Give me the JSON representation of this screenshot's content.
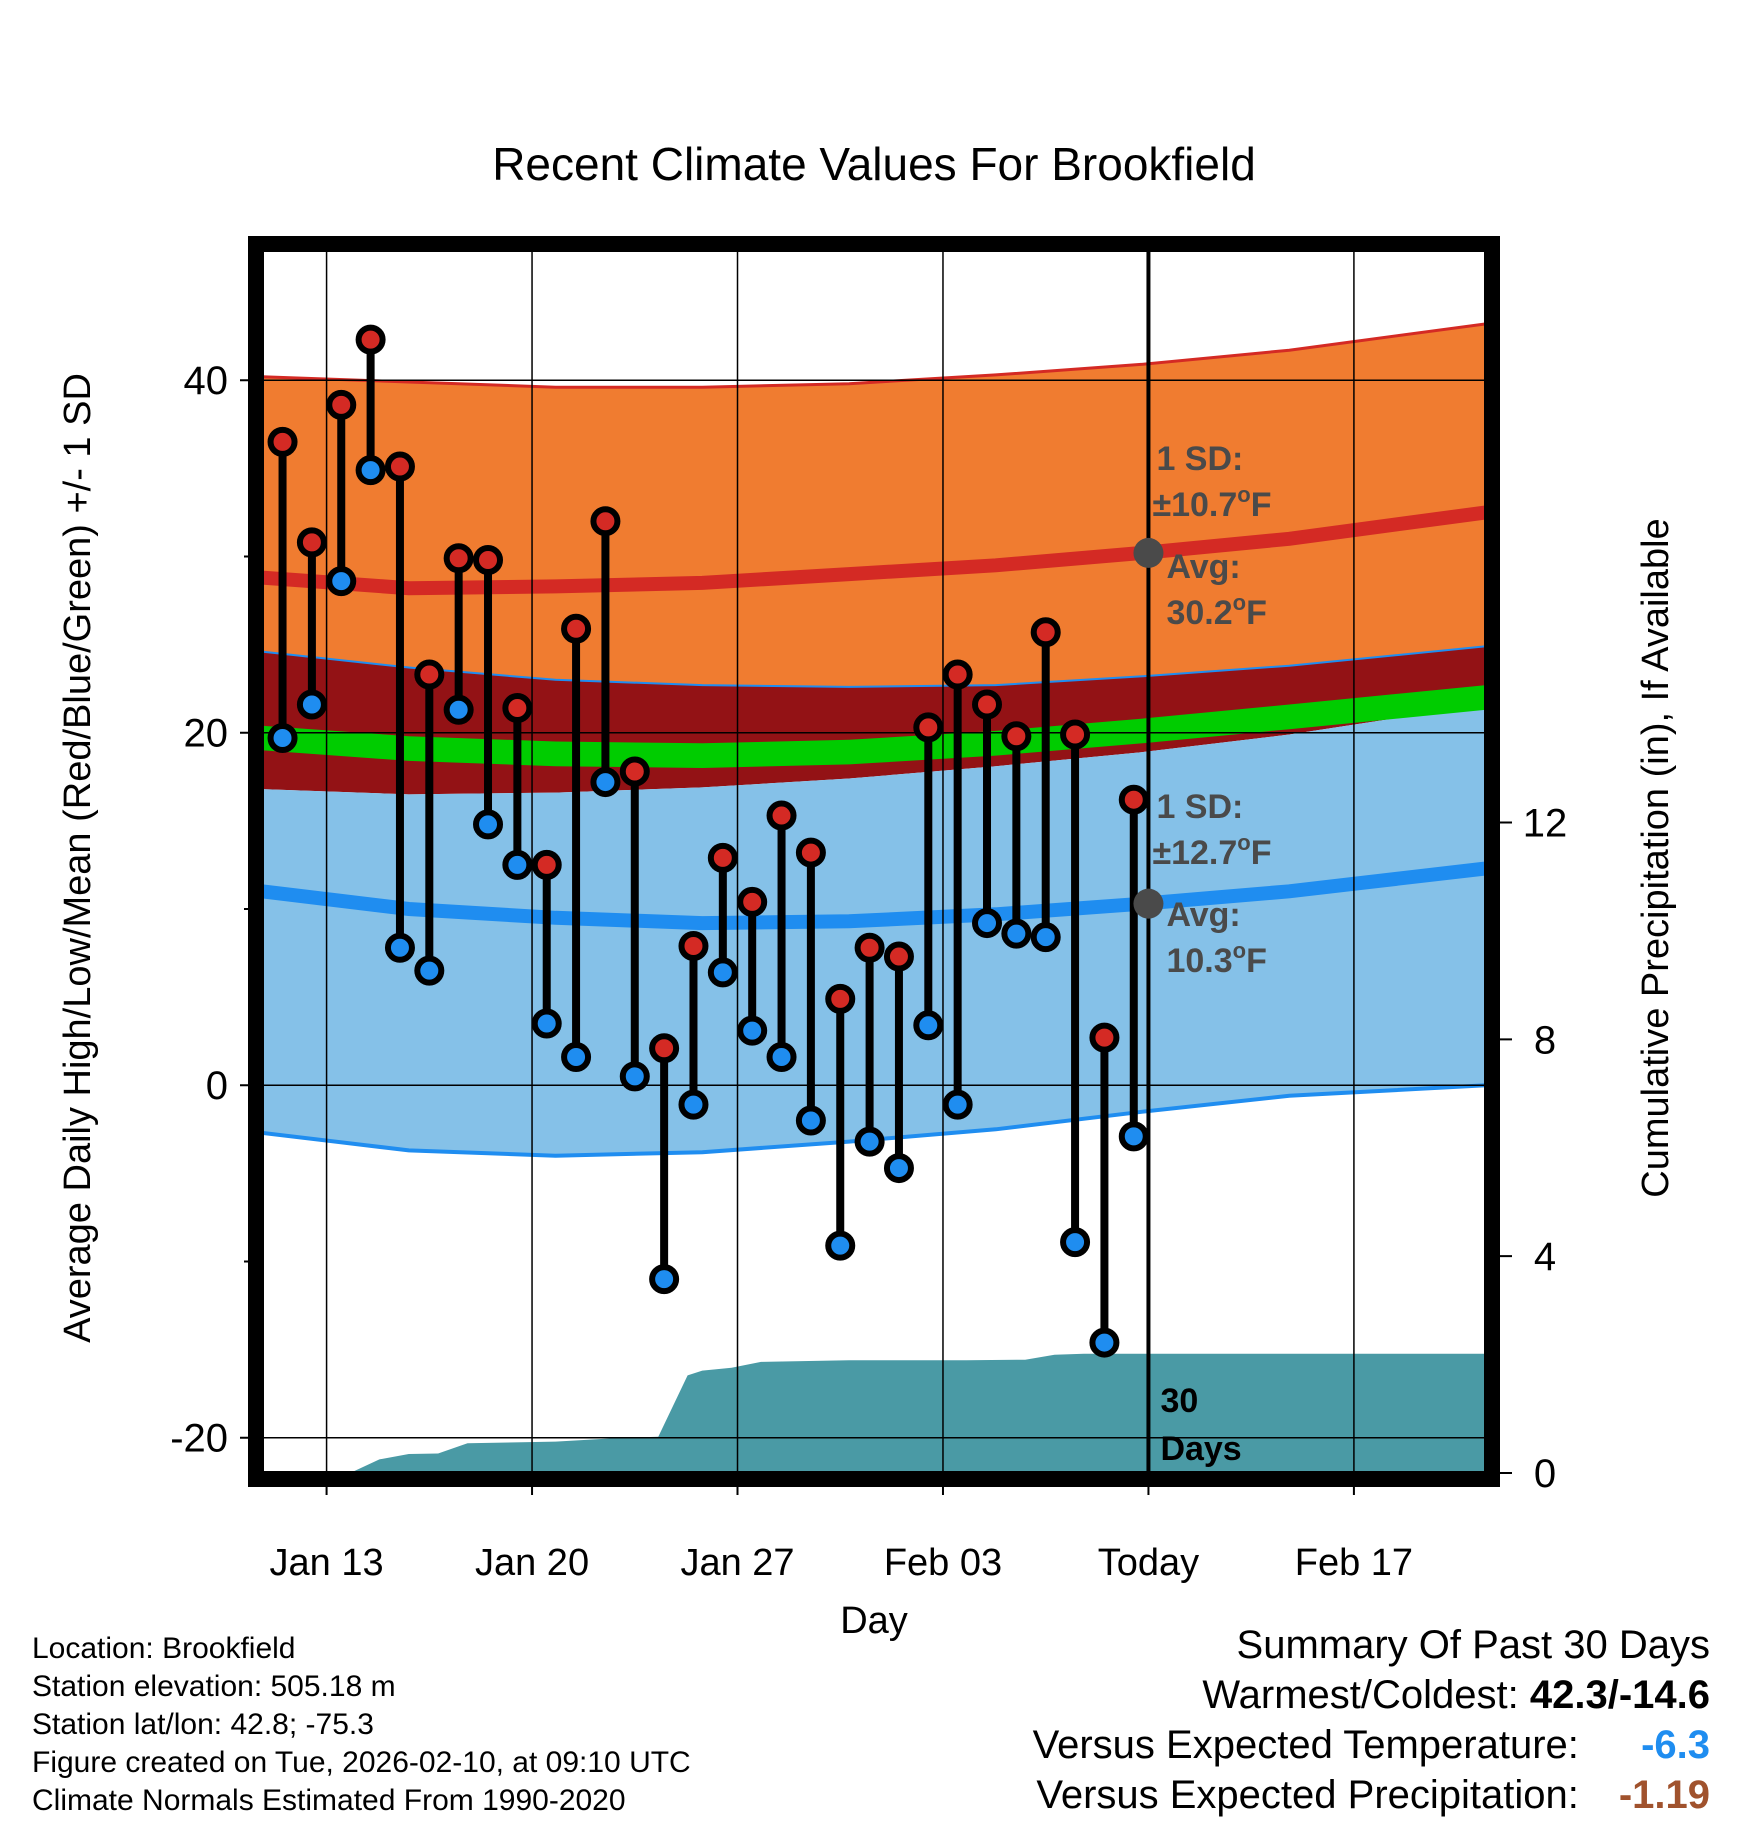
{
  "chart_data": {
    "type": "line",
    "title": "Recent Climate Values For Brookfield",
    "xlabel": "Day",
    "ylabel": "Average Daily High/Low/Mean (Red/Blue/Green) +/- 1 SD",
    "y2label": "Cumulative Precipitation (in), If Available",
    "xlim": [
      0,
      41.7
    ],
    "ylim": [
      -22,
      47.5
    ],
    "y2lim": [
      0,
      22.6
    ],
    "x_ticks": [
      {
        "x": 2.2,
        "label": "Jan 13"
      },
      {
        "x": 9.2,
        "label": "Jan 20"
      },
      {
        "x": 16.2,
        "label": "Jan 27"
      },
      {
        "x": 23.2,
        "label": "Feb 03"
      },
      {
        "x": 30.2,
        "label": "Today"
      },
      {
        "x": 37.2,
        "label": "Feb 17"
      }
    ],
    "y_ticks": [
      -20,
      0,
      20,
      40
    ],
    "y_ticks_labels": [
      "-20",
      "0",
      "20",
      "40"
    ],
    "y_minor_ticks": [
      -10,
      10,
      30
    ],
    "y2_ticks": [
      0,
      4,
      8,
      12
    ],
    "y2_ticks_labels": [
      "0",
      "4",
      "8",
      "12"
    ],
    "today_x": 30.2,
    "normals": {
      "x": [
        0,
        5,
        10,
        15,
        20,
        25,
        30,
        35,
        41.7
      ],
      "high_avg": [
        28.8,
        28.2,
        28.3,
        28.5,
        29.0,
        29.5,
        30.2,
        31.0,
        32.5
      ],
      "high_upper": [
        40.2,
        39.9,
        39.6,
        39.6,
        39.8,
        40.3,
        40.9,
        41.7,
        43.2
      ],
      "high_lower": [
        24.6,
        23.7,
        23.0,
        22.7,
        22.6,
        22.7,
        23.2,
        23.8,
        24.9
      ],
      "mean_upper": [
        20.4,
        19.8,
        19.5,
        19.4,
        19.6,
        20.1,
        20.8,
        21.6,
        22.7
      ],
      "mean_lower": [
        19.0,
        18.4,
        18.1,
        18.0,
        18.2,
        18.7,
        19.4,
        20.2,
        21.3
      ],
      "low_upper": [
        16.8,
        16.5,
        16.6,
        16.9,
        17.4,
        18.1,
        18.9,
        19.9,
        21.6
      ],
      "low_avg": [
        11.0,
        10.0,
        9.5,
        9.2,
        9.3,
        9.7,
        10.3,
        11.0,
        12.3
      ],
      "low_lower": [
        -2.7,
        -3.7,
        -4.0,
        -3.8,
        -3.2,
        -2.5,
        -1.5,
        -0.6,
        0.0
      ]
    },
    "series": [
      {
        "name": "Daily High",
        "x": [
          0.7,
          1.7,
          2.7,
          3.7,
          4.7,
          5.7,
          6.7,
          7.7,
          8.7,
          9.7,
          10.7,
          11.7,
          12.7,
          13.7,
          14.7,
          15.7,
          16.7,
          17.7,
          18.7,
          19.7,
          20.7,
          21.7,
          22.7,
          23.7,
          24.7,
          25.7,
          26.7,
          27.7,
          28.7,
          29.7
        ],
        "values": [
          36.5,
          30.8,
          38.6,
          42.3,
          35.1,
          23.3,
          29.9,
          29.8,
          21.4,
          12.5,
          25.9,
          32.0,
          17.8,
          2.1,
          7.9,
          12.9,
          10.4,
          15.3,
          13.2,
          4.9,
          7.8,
          7.3,
          20.3,
          23.3,
          21.6,
          19.8,
          25.7,
          19.9,
          2.7,
          16.2
        ]
      },
      {
        "name": "Daily Low",
        "x": [
          0.7,
          1.7,
          2.7,
          3.7,
          4.7,
          5.7,
          6.7,
          7.7,
          8.7,
          9.7,
          10.7,
          11.7,
          12.7,
          13.7,
          14.7,
          15.7,
          16.7,
          17.7,
          18.7,
          19.7,
          20.7,
          21.7,
          22.7,
          23.7,
          24.7,
          25.7,
          26.7,
          27.7,
          28.7,
          29.7
        ],
        "values": [
          19.7,
          21.6,
          28.6,
          34.9,
          7.8,
          6.5,
          21.3,
          14.8,
          12.5,
          3.5,
          1.6,
          17.2,
          0.5,
          -11.0,
          -1.1,
          6.4,
          3.1,
          1.6,
          -2.0,
          -9.1,
          -3.2,
          -4.7,
          3.4,
          -1.1,
          9.2,
          8.6,
          8.4,
          -8.9,
          -14.6,
          -2.9
        ]
      },
      {
        "name": "Cumulative Precipitation",
        "x": [
          0,
          3,
          4,
          5,
          6,
          7,
          10,
          12,
          13.5,
          14.5,
          15,
          16,
          17,
          20,
          24,
          26,
          27,
          28,
          30,
          41.7
        ],
        "values": [
          0,
          0,
          0.25,
          0.35,
          0.36,
          0.55,
          0.58,
          0.64,
          0.67,
          1.8,
          1.89,
          1.94,
          2.05,
          2.08,
          2.08,
          2.09,
          2.18,
          2.2,
          2.2,
          2.2
        ]
      }
    ],
    "annotations": {
      "high_sd_label": "1 SD:",
      "high_sd_value": "±10.7",
      "high_avg_label": "Avg:",
      "high_avg_value": "30.2",
      "low_sd_label": "1 SD:",
      "low_sd_value": "±12.7",
      "low_avg_label": "Avg:",
      "low_avg_value": "10.3",
      "high_avg_marker": 30.2,
      "low_avg_marker": 10.3,
      "degree_symbol": "o",
      "unit": "F",
      "precip_label_1": "30",
      "precip_label_2": "Days"
    },
    "colors": {
      "high_band": "#f07c30",
      "high_line": "#d42a24",
      "overlap_band": "#931215",
      "mean_band": "#00cc00",
      "low_band": "#85c1e8",
      "low_line": "#1f8df0",
      "precip": "#4a9aa5",
      "marker_high": "#d42a24",
      "marker_low": "#1f8df0",
      "annotation": "#4a4a4a"
    }
  },
  "info": {
    "location": "Location: Brookfield",
    "elevation": "Station elevation: 505.18 m",
    "latlon": "Station lat/lon: 42.8; -75.3",
    "created": "Figure created on Tue, 2026-02-10, at 09:10 UTC",
    "normals": "Climate Normals Estimated From 1990-2020"
  },
  "summary": {
    "heading": "Summary Of Past 30 Days",
    "warm_cold_label": "Warmest/Coldest:",
    "warm_cold_value": "42.3/-14.6",
    "temp_label": "Versus Expected Temperature:",
    "temp_value": "-6.3",
    "temp_color": "#1f8df0",
    "precip_label": "Versus Expected Precipitation:",
    "precip_value": "-1.19",
    "precip_color": "#a0522d"
  }
}
